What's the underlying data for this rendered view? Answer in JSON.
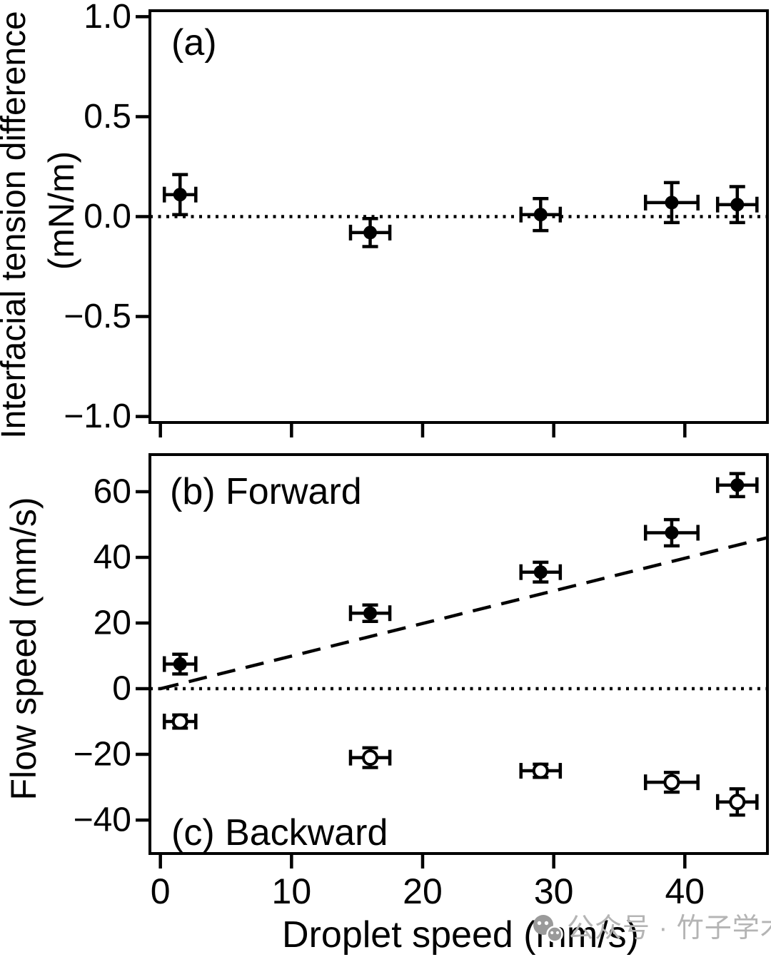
{
  "figure": {
    "panels": {
      "a": {
        "label": "(a)"
      },
      "b": {
        "label": "(b) Forward"
      },
      "c": {
        "label": "(c) Backward"
      }
    },
    "axes": {
      "x_title": "Droplet speed (mm/s)",
      "y_title_top_line1": "Interfacial tension difference",
      "y_title_top_line2": "(mN/m)",
      "y_title_bottom": "Flow speed (mm/s)"
    }
  },
  "watermark": {
    "icon": "wechat-icon",
    "text": "公众号 · 竹子学术"
  },
  "colors": {
    "ink": "#000000",
    "background": "#ffffff",
    "watermark_icon": "#9a9a9a",
    "watermark_text": "#b4b4b4"
  },
  "chart_data": [
    {
      "id": "panel-a",
      "type": "scatter",
      "title": "(a)",
      "xlabel": "Droplet speed (mm/s)",
      "ylabel": "Interfacial tension difference (mN/m)",
      "xlim": [
        -0.8,
        46.3
      ],
      "ylim": [
        -1.03,
        1.03
      ],
      "grid": false,
      "xticks": [
        0,
        10,
        20,
        30,
        40
      ],
      "xtick_labels": [
        "0",
        "10",
        "20",
        "30",
        "40"
      ],
      "xtick_labels_shown": false,
      "yticks": [
        1.0,
        0.5,
        0.0,
        -0.5,
        -1.0
      ],
      "ytick_labels": [
        "1.0",
        "0.5",
        "0.0",
        "−0.5",
        "−1.0"
      ],
      "reference_lines": [
        {
          "style": "dotted",
          "y": 0
        }
      ],
      "series": [
        {
          "name": "interfacial tension difference",
          "marker": "filled-circle",
          "points": [
            {
              "x": 1.5,
              "y": 0.11,
              "xerr": 1.2,
              "yerr": 0.1
            },
            {
              "x": 16,
              "y": -0.08,
              "xerr": 1.5,
              "yerr": 0.07
            },
            {
              "x": 29,
              "y": 0.01,
              "xerr": 1.5,
              "yerr": 0.08
            },
            {
              "x": 39,
              "y": 0.07,
              "xerr": 2.0,
              "yerr": 0.1
            },
            {
              "x": 44,
              "y": 0.06,
              "xerr": 1.5,
              "yerr": 0.09
            }
          ]
        }
      ]
    },
    {
      "id": "panel-bc",
      "type": "scatter",
      "title": "(b) Forward / (c) Backward",
      "xlabel": "Droplet speed (mm/s)",
      "ylabel": "Flow speed (mm/s)",
      "xlim": [
        -0.8,
        46.3
      ],
      "ylim": [
        -50.2,
        71.3
      ],
      "grid": false,
      "xticks": [
        0,
        10,
        20,
        30,
        40
      ],
      "xtick_labels": [
        "0",
        "10",
        "20",
        "30",
        "40"
      ],
      "xtick_labels_shown": true,
      "yticks": [
        60,
        40,
        20,
        0,
        -20,
        -40
      ],
      "ytick_labels": [
        "60",
        "40",
        "20",
        "0",
        "−20",
        "−40"
      ],
      "reference_lines": [
        {
          "style": "dotted",
          "y": 0
        },
        {
          "style": "dashed",
          "from": [
            0,
            0
          ],
          "to": [
            46.3,
            46
          ]
        }
      ],
      "series": [
        {
          "name": "forward flow",
          "marker": "filled-circle",
          "points": [
            {
              "x": 1.5,
              "y": 7.5,
              "xerr": 1.2,
              "yerr": 3.0
            },
            {
              "x": 16,
              "y": 23.0,
              "xerr": 1.5,
              "yerr": 2.5
            },
            {
              "x": 29,
              "y": 35.5,
              "xerr": 1.5,
              "yerr": 3.0
            },
            {
              "x": 39,
              "y": 47.5,
              "xerr": 2.0,
              "yerr": 4.0
            },
            {
              "x": 44,
              "y": 62.0,
              "xerr": 1.5,
              "yerr": 3.5
            }
          ]
        },
        {
          "name": "backward flow",
          "marker": "open-circle",
          "points": [
            {
              "x": 1.5,
              "y": -10.0,
              "xerr": 1.2,
              "yerr": 2.0
            },
            {
              "x": 16,
              "y": -21.0,
              "xerr": 1.5,
              "yerr": 3.0
            },
            {
              "x": 29,
              "y": -25.0,
              "xerr": 1.5,
              "yerr": 2.0
            },
            {
              "x": 39,
              "y": -28.5,
              "xerr": 2.0,
              "yerr": 3.0
            },
            {
              "x": 44,
              "y": -34.5,
              "xerr": 1.5,
              "yerr": 4.0
            }
          ]
        }
      ]
    }
  ]
}
